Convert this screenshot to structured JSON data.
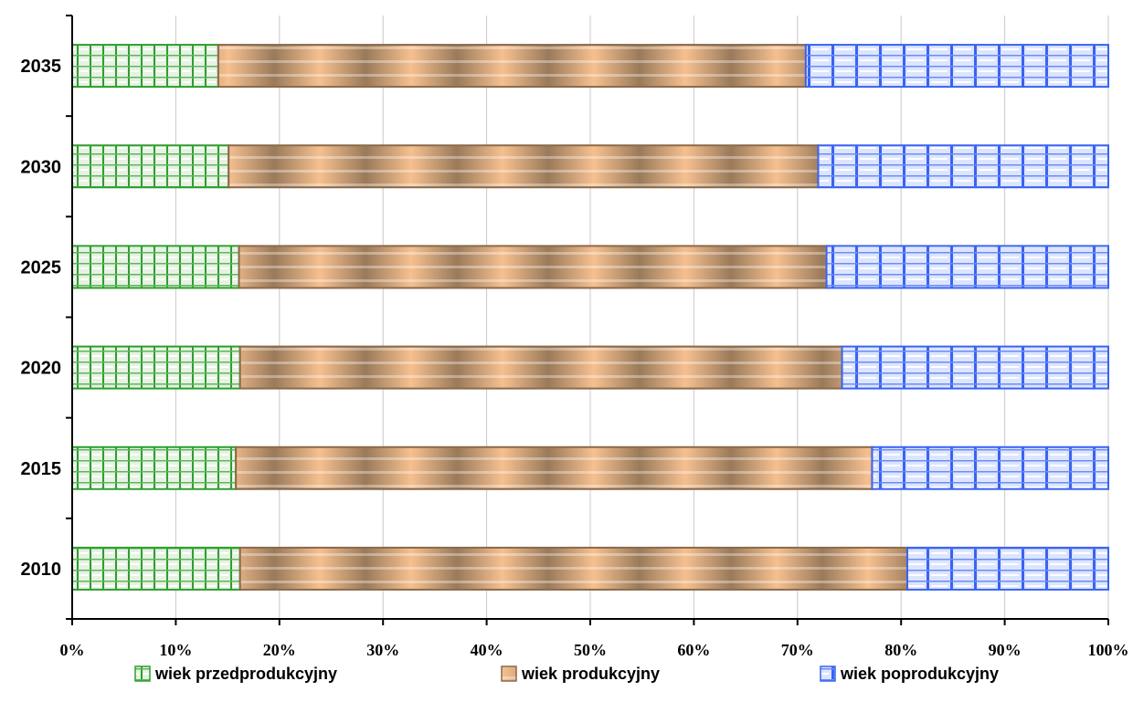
{
  "chart_data": {
    "type": "bar",
    "orientation": "horizontal",
    "stacked": "percent",
    "categories": [
      "2010",
      "2015",
      "2020",
      "2025",
      "2030",
      "2035"
    ],
    "series": [
      {
        "name": "wiek przedprodukcyjny",
        "values": [
          16.2,
          15.8,
          16.2,
          16.1,
          15.1,
          14.1
        ],
        "color": "#2e9e2e",
        "fill": "#dfeedb"
      },
      {
        "name": "wiek produkcyjny",
        "values": [
          64.4,
          61.4,
          58.1,
          56.7,
          56.9,
          56.7
        ],
        "color": "#8a6a4a",
        "fill": "#f0b98a"
      },
      {
        "name": "wiek poprodukcyjny",
        "values": [
          19.4,
          22.8,
          25.7,
          27.2,
          28.0,
          29.2
        ],
        "color": "#3a63f2",
        "fill": "#d8e2ff"
      }
    ],
    "xlim": [
      0,
      100
    ],
    "xticks": [
      "0%",
      "10%",
      "20%",
      "30%",
      "40%",
      "50%",
      "60%",
      "70%",
      "80%",
      "90%",
      "100%"
    ],
    "grid": "vertical",
    "legend": "bottom",
    "title": "",
    "xlabel": "",
    "ylabel": ""
  }
}
